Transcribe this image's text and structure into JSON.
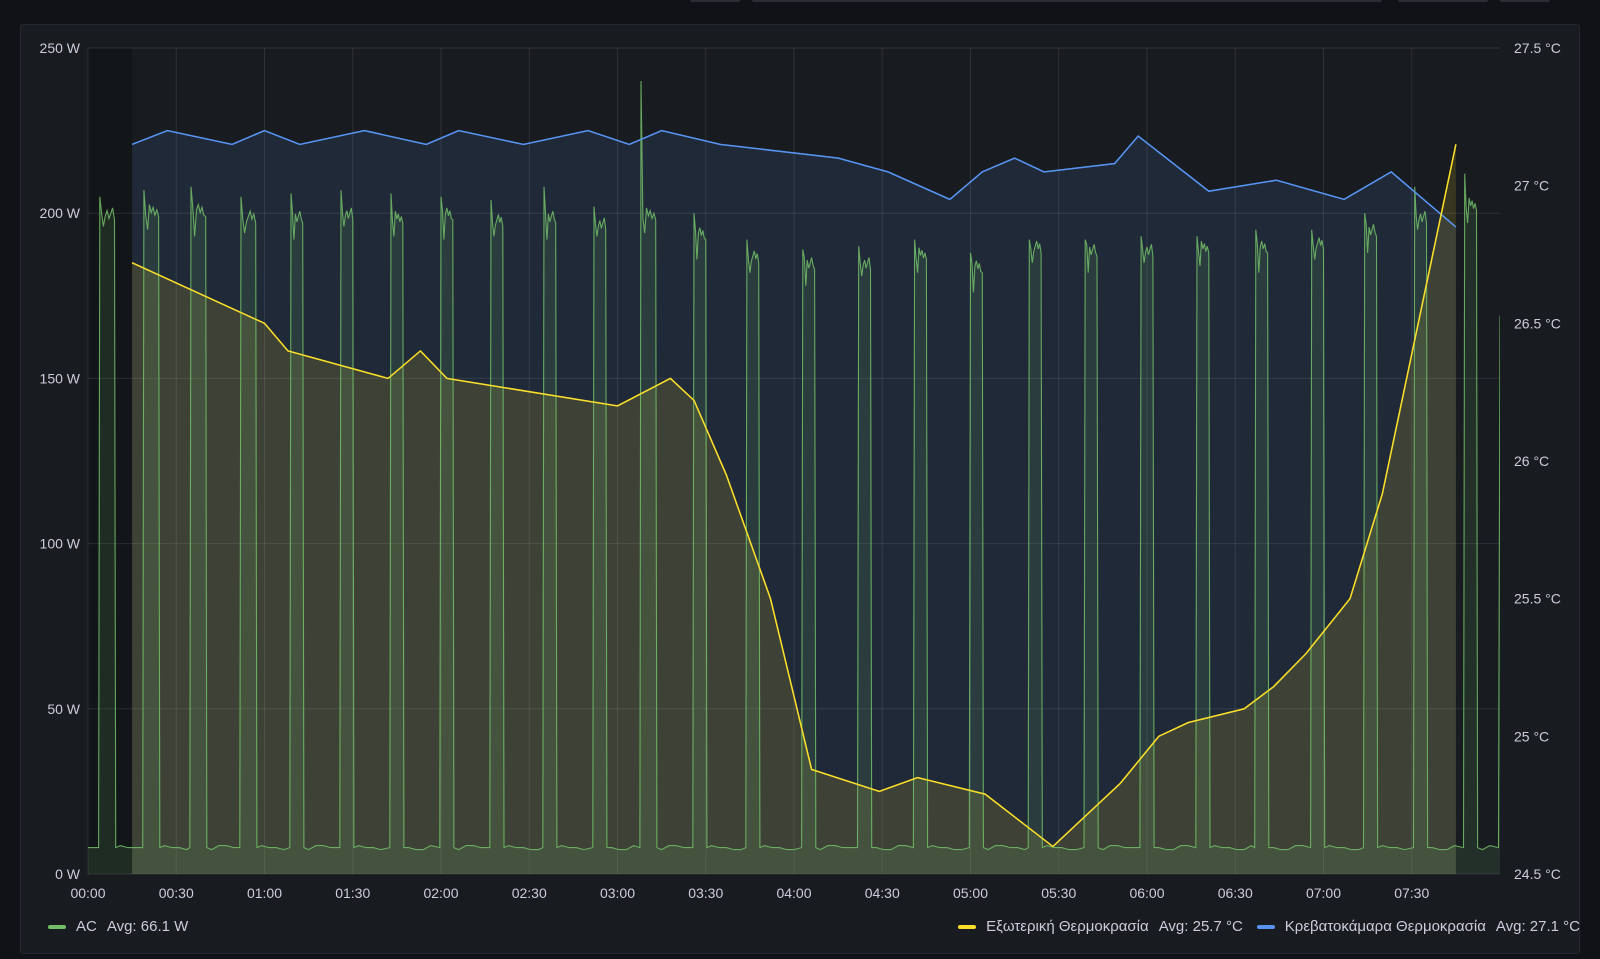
{
  "chart_data": {
    "type": "line",
    "left_axis": {
      "unit": "W",
      "ticks": [
        "0 W",
        "50 W",
        "100 W",
        "150 W",
        "200 W",
        "250 W"
      ],
      "ylim": [
        0,
        250
      ]
    },
    "right_axis": {
      "unit": "°C",
      "ticks": [
        "24.5 °C",
        "25 °C",
        "25.5 °C",
        "26 °C",
        "26.5 °C",
        "27 °C",
        "27.5 °C"
      ],
      "ylim": [
        24.5,
        27.5
      ]
    },
    "x_ticks": [
      "00:00",
      "00:30",
      "01:00",
      "01:30",
      "02:00",
      "02:30",
      "03:00",
      "03:30",
      "04:00",
      "04:30",
      "05:00",
      "05:30",
      "06:00",
      "06:30",
      "07:00",
      "07:30"
    ],
    "x_range_minutes": [
      0,
      480
    ],
    "grid": true,
    "series": [
      {
        "name": "AC",
        "axis": "left",
        "color": "#73bf69",
        "fill": true,
        "x_unit": "minutes since 00:00",
        "on_cycles": [
          {
            "start": 4,
            "end": 9,
            "peak": 205,
            "plateau": 200
          },
          {
            "start": 19,
            "end": 24,
            "peak": 207,
            "plateau": 201
          },
          {
            "start": 35,
            "end": 40,
            "peak": 208,
            "plateau": 201
          },
          {
            "start": 52,
            "end": 57,
            "peak": 205,
            "plateau": 199
          },
          {
            "start": 69,
            "end": 73,
            "peak": 206,
            "plateau": 199
          },
          {
            "start": 86,
            "end": 90,
            "peak": 207,
            "plateau": 200
          },
          {
            "start": 103,
            "end": 107,
            "peak": 206,
            "plateau": 199
          },
          {
            "start": 120,
            "end": 124,
            "peak": 205,
            "plateau": 200
          },
          {
            "start": 137,
            "end": 141,
            "peak": 204,
            "plateau": 198
          },
          {
            "start": 155,
            "end": 159,
            "peak": 208,
            "plateau": 199
          },
          {
            "start": 172,
            "end": 176,
            "peak": 202,
            "plateau": 197
          },
          {
            "start": 188,
            "end": 193,
            "peak": 240,
            "plateau": 200
          },
          {
            "start": 206,
            "end": 210,
            "peak": 200,
            "plateau": 194
          },
          {
            "start": 224,
            "end": 228,
            "peak": 192,
            "plateau": 187
          },
          {
            "start": 243,
            "end": 247,
            "peak": 189,
            "plateau": 185
          },
          {
            "start": 262,
            "end": 266,
            "peak": 190,
            "plateau": 185
          },
          {
            "start": 281,
            "end": 285,
            "peak": 192,
            "plateau": 188
          },
          {
            "start": 300,
            "end": 304,
            "peak": 188,
            "plateau": 184
          },
          {
            "start": 320,
            "end": 324,
            "peak": 192,
            "plateau": 190
          },
          {
            "start": 339,
            "end": 343,
            "peak": 192,
            "plateau": 189
          },
          {
            "start": 358,
            "end": 362,
            "peak": 193,
            "plateau": 189
          },
          {
            "start": 377,
            "end": 381,
            "peak": 193,
            "plateau": 190
          },
          {
            "start": 397,
            "end": 401,
            "peak": 195,
            "plateau": 190
          },
          {
            "start": 416,
            "end": 420,
            "peak": 195,
            "plateau": 191
          },
          {
            "start": 434,
            "end": 438,
            "peak": 200,
            "plateau": 195
          },
          {
            "start": 451,
            "end": 455,
            "peak": 208,
            "plateau": 199
          },
          {
            "start": 468,
            "end": 472,
            "peak": 212,
            "plateau": 203
          }
        ],
        "baseline": 8,
        "end_value_minute": 480,
        "end_value": 169,
        "avg_label": "Avg: 66.1 W"
      },
      {
        "name": "Εξωτερική Θερμοκρασία",
        "axis": "right",
        "color": "#fade2a",
        "fill": true,
        "x": [
          15,
          60,
          68,
          102,
          113,
          122,
          180,
          198,
          206,
          217,
          232,
          246,
          269,
          282,
          305,
          328,
          351,
          364,
          374,
          393,
          403,
          414,
          429,
          440,
          465
        ],
        "y": [
          26.72,
          26.5,
          26.4,
          26.3,
          26.4,
          26.3,
          26.2,
          26.3,
          26.22,
          25.95,
          25.5,
          24.88,
          24.8,
          24.85,
          24.79,
          24.6,
          24.83,
          25.0,
          25.05,
          25.1,
          25.18,
          25.3,
          25.5,
          25.88,
          27.15
        ],
        "avg_label": "Avg: 25.7 °C"
      },
      {
        "name": "Κρεβατοκάμαρα Θερμοκρασία",
        "axis": "right",
        "color": "#5794f2",
        "fill": true,
        "x": [
          15,
          27,
          49,
          60,
          72,
          94,
          115,
          126,
          148,
          170,
          184,
          195,
          215,
          255,
          272,
          293,
          304,
          315,
          325,
          349,
          357,
          381,
          404,
          427,
          443,
          465
        ],
        "y": [
          27.15,
          27.2,
          27.15,
          27.2,
          27.15,
          27.2,
          27.15,
          27.2,
          27.15,
          27.2,
          27.15,
          27.2,
          27.15,
          27.1,
          27.05,
          26.95,
          27.05,
          27.1,
          27.05,
          27.08,
          27.18,
          26.98,
          27.02,
          26.95,
          27.05,
          26.85
        ],
        "avg_label": "Avg: 27.1 °C"
      }
    ]
  }
}
